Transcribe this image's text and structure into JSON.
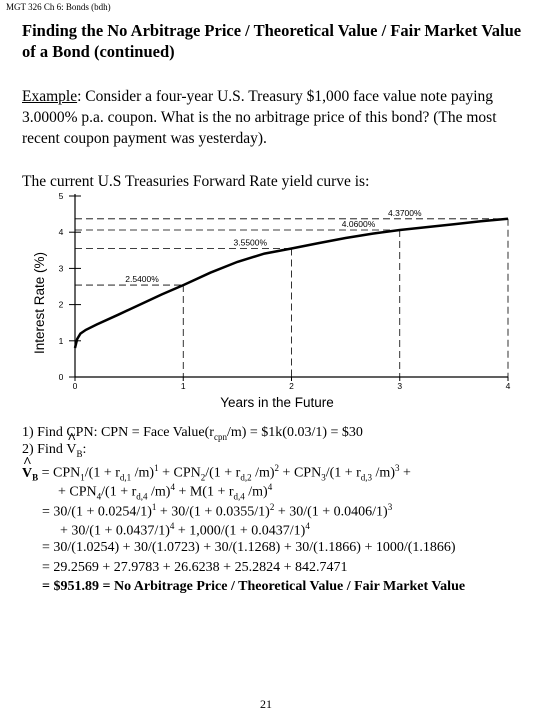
{
  "header": "MGT 326 Ch 6: Bonds (bdh)",
  "title": "Finding the No Arbitrage Price / Theoretical Value / Fair Market Value of a Bond (continued)",
  "example": {
    "label": "Example",
    "text": ":  Consider a four-year U.S. Treasury $1,000 face value note paying 3.0000% p.a. coupon.  What is the no arbitrage price of this bond? (The most recent coupon payment was yesterday)."
  },
  "curve_intro": "The current U.S Treasuries Forward Rate yield curve is:",
  "chart_data": {
    "type": "line",
    "xlabel": "Years in the Future",
    "ylabel": "Interest Rate (%)",
    "xlim": [
      0,
      4
    ],
    "ylim": [
      0,
      5
    ],
    "xticks": [
      "0",
      "1",
      "2",
      "3",
      "4"
    ],
    "yticks": [
      "0",
      "1",
      "2",
      "3",
      "4",
      "5"
    ],
    "x": [
      0,
      0.02,
      0.05,
      0.1,
      0.2,
      0.4,
      0.6,
      0.8,
      1,
      1.25,
      1.5,
      1.75,
      2,
      2.25,
      2.5,
      2.75,
      3,
      3.25,
      3.5,
      3.75,
      4
    ],
    "y": [
      0.8,
      1.05,
      1.2,
      1.3,
      1.45,
      1.72,
      2.0,
      2.28,
      2.54,
      2.88,
      3.18,
      3.41,
      3.55,
      3.7,
      3.84,
      3.96,
      4.06,
      4.14,
      4.22,
      4.3,
      4.37
    ],
    "annotations": [
      {
        "label": "2.5400%",
        "x": 1,
        "y": 2.54
      },
      {
        "label": "3.5500%",
        "x": 2,
        "y": 3.55
      },
      {
        "label": "4.0600%",
        "x": 3,
        "y": 4.06
      },
      {
        "label": "4.3700%",
        "x": 4,
        "y": 4.37
      }
    ]
  },
  "calc": {
    "step1_a": "1) Find CPN:  CPN = Face Value(r",
    "step1_sub": "cpn",
    "step1_b": "/m)  = $1k(0.03/1) = $30",
    "step2_a": "2) Find ",
    "step2_v": "V",
    "step2_sub": "B",
    "step2_b": ":",
    "line3_v": "V",
    "line3_sub": "B",
    "line3_a": " = CPN",
    "line3_s1": "1",
    "line3_b": "/(1 + r",
    "line3_s2": "d,1",
    "line3_c": " /m)",
    "line3_p1": "1",
    "line3_d": "  + CPN",
    "line3_s3": "2",
    "line3_e": "/(1 + r",
    "line3_s4": "d,2",
    "line3_f": " /m)",
    "line3_p2": "2",
    "line3_g": " + CPN",
    "line3_s5": "3",
    "line3_h": "/(1 + r",
    "line3_s6": "d,3",
    "line3_i": " /m)",
    "line3_p3": "3",
    "line3_j": " +",
    "line4_a": "+ CPN",
    "line4_s1": "4",
    "line4_b": "/(1 + r",
    "line4_s2": "d,4",
    "line4_c": " /m)",
    "line4_p1": "4",
    "line4_d": " + M(1 + r",
    "line4_s3": "d,4",
    "line4_e": " /m)",
    "line4_p2": "4",
    "line5_a": "= 30/(1 + 0.0254/1)",
    "line5_p1": "1",
    "line5_b": " + 30/(1 + 0.0355/1)",
    "line5_p2": "2",
    "line5_c": " + 30/(1 + 0.0406/1)",
    "line5_p3": "3",
    "line6_a": "+ 30/(1 + 0.0437/1)",
    "line6_p1": "4",
    "line6_b": " + 1,000/(1 + 0.0437/1)",
    "line6_p2": "4",
    "line7": "= 30/(1.0254) + 30/(1.0723) + 30/(1.1268) + 30/(1.1866) + 1000/(1.1866)",
    "line8": "= 29.2569 + 27.9783 + 26.6238 + 25.2824 + 842.7471",
    "line9": "= $951.89 = No Arbitrage Price / Theoretical Value / Fair Market Value"
  },
  "page_number": "21"
}
